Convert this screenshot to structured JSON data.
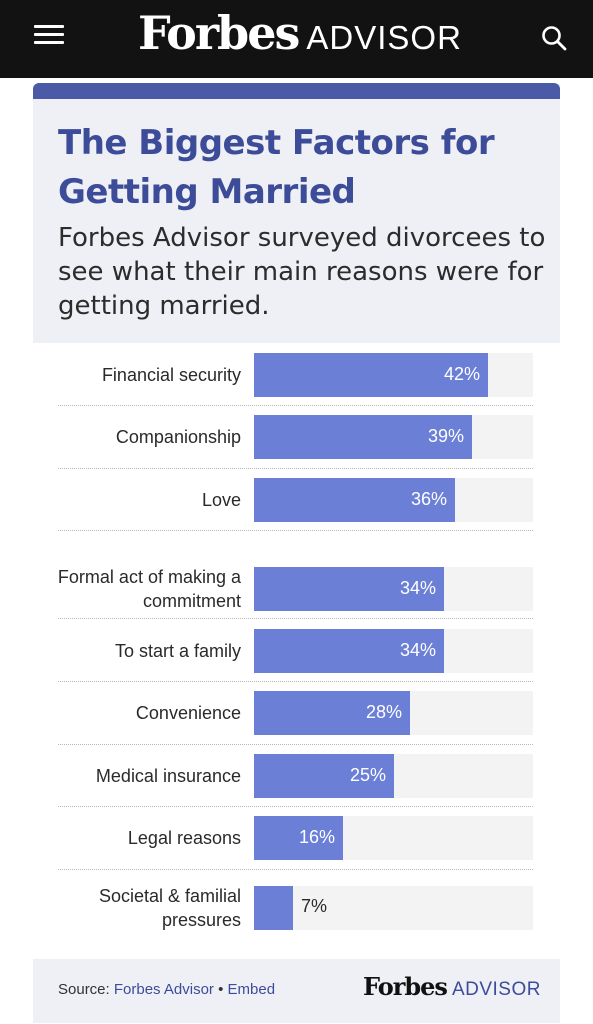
{
  "header": {
    "logo_wordmark": "Forbes",
    "logo_suffix": "ADVISOR",
    "menu_icon": "hamburger-menu-icon",
    "search_icon": "search-icon"
  },
  "infographic": {
    "title": "The Biggest Factors for Getting Married",
    "subtitle": "Forbes Advisor surveyed divorcees to see what their main reasons were for getting married.",
    "source_prefix": "Source:",
    "source_name": "Forbes Advisor",
    "separator": "•",
    "embed_label": "Embed",
    "footer_logo_wordmark": "Forbes",
    "footer_logo_suffix": "ADVISOR"
  },
  "colors": {
    "top_bar": "#121212",
    "accent_blue": "#4b5aa6",
    "title_blue": "#3d4c99",
    "bar_fill": "#6b7fd7",
    "bar_track": "#f3f3f3",
    "panel_background": "#eef0f6"
  },
  "chart_data": {
    "type": "bar",
    "orientation": "horizontal",
    "categories": [
      "Financial security",
      "Companionship",
      "Love",
      "Formal act of making a commitment",
      "To start a family",
      "Convenience",
      "Medical insurance",
      "Legal reasons",
      "Societal & familial pressures"
    ],
    "values": [
      42,
      39,
      36,
      34,
      34,
      28,
      25,
      16,
      7
    ],
    "value_labels": [
      "42%",
      "39%",
      "36%",
      "34%",
      "34%",
      "28%",
      "25%",
      "16%",
      "7%"
    ],
    "unit": "%",
    "xlim": [
      0,
      50
    ],
    "grid": false,
    "legend": "none"
  }
}
